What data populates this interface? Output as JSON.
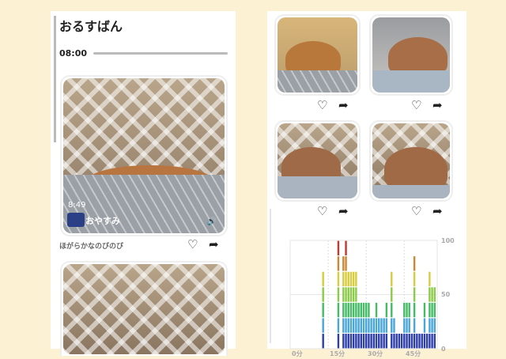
{
  "left": {
    "title": "おるすばん",
    "time": "08:00",
    "video": {
      "duration": "8:49",
      "channel": "おやすみ",
      "caption": "ほがらかなのびのび"
    }
  },
  "icons": {
    "like": "heart-icon",
    "share": "share-arrow-icon",
    "sound": "volume-icon"
  },
  "chart_data": {
    "type": "bar",
    "stacked_levels": true,
    "x": [
      13,
      19,
      21,
      22,
      23,
      24,
      25,
      26,
      27,
      28,
      29,
      30,
      31,
      32,
      33,
      34,
      35,
      36,
      37,
      38,
      40,
      41,
      42,
      43,
      44,
      45,
      46,
      47,
      48,
      49,
      50,
      51,
      52,
      53,
      54,
      55,
      56,
      57
    ],
    "values": [
      71,
      100,
      86,
      100,
      71,
      71,
      71,
      71,
      43,
      43,
      43,
      43,
      43,
      29,
      29,
      43,
      29,
      29,
      29,
      43,
      71,
      29,
      14,
      14,
      14,
      43,
      43,
      43,
      14,
      86,
      14,
      14,
      14,
      43,
      14,
      71,
      57,
      57
    ],
    "xlim": [
      0,
      58
    ],
    "ylim": [
      0,
      100
    ],
    "xticks": [
      "0分",
      "15分",
      "30分",
      "45分"
    ],
    "xtick_values": [
      0,
      15,
      30,
      45
    ],
    "yticks": [
      "0",
      "50",
      "100"
    ],
    "ytick_values": [
      0,
      50,
      100
    ],
    "level_colors": [
      "#2e3ea8",
      "#4aa6d6",
      "#45bb66",
      "#8ccb48",
      "#d8cc3e",
      "#cc8634",
      "#c43a2f"
    ]
  }
}
